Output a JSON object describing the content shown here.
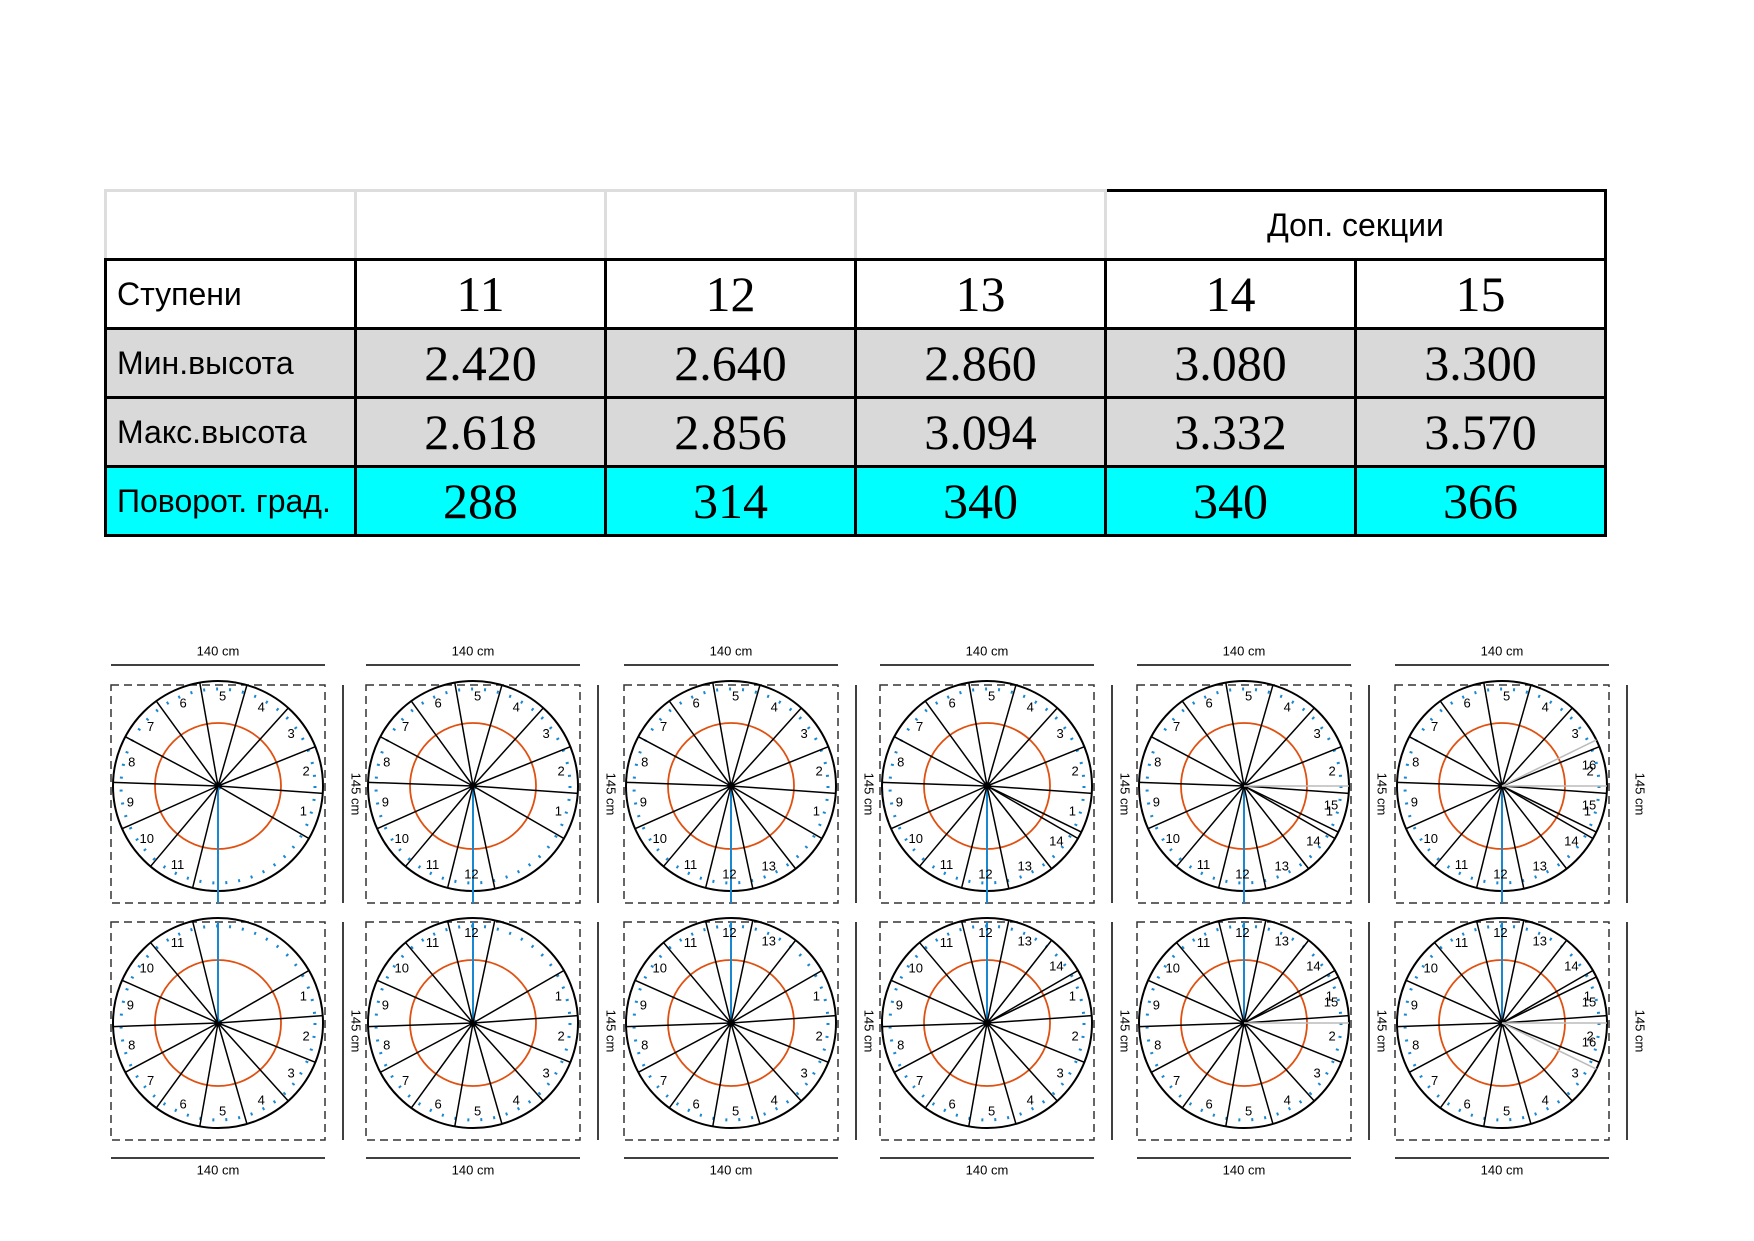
{
  "table": {
    "header": [
      "",
      "",
      "",
      "",
      "Доп. секции"
    ],
    "rows": [
      [
        "Ступени",
        "11",
        "12",
        "13",
        "14",
        "15"
      ],
      [
        "Мин.высота",
        "2.420",
        "2.640",
        "2.860",
        "3.080",
        "3.300"
      ],
      [
        "Макс.высота",
        "2.618",
        "2.856",
        "3.094",
        "3.332",
        "3.570"
      ],
      [
        "Поворот. град.",
        "288",
        "314",
        "340",
        "340",
        "366"
      ]
    ]
  },
  "diagrams": [
    {
      "width_top": "140 cm",
      "height_top": "145 cm",
      "height_bottom": "145 cm",
      "width_bottom": "140 cm",
      "steps": [
        1,
        2,
        3,
        4,
        5,
        6,
        7,
        8,
        9,
        10,
        11
      ]
    },
    {
      "width_top": "140 cm",
      "height_top": "145 cm",
      "height_bottom": "145 cm",
      "width_bottom": "140 cm",
      "steps": [
        1,
        2,
        3,
        4,
        5,
        6,
        7,
        8,
        9,
        10,
        11,
        12
      ]
    },
    {
      "width_top": "140 cm",
      "height_top": "145 cm",
      "height_bottom": "145 cm",
      "width_bottom": "140 cm",
      "steps": [
        1,
        2,
        3,
        4,
        5,
        6,
        7,
        8,
        9,
        10,
        11,
        12,
        13
      ]
    },
    {
      "width_top": "140 cm",
      "height_top": "145 cm",
      "height_bottom": "145 cm",
      "width_bottom": "140 cm",
      "steps": [
        1,
        2,
        3,
        4,
        5,
        6,
        7,
        8,
        9,
        10,
        11,
        12,
        13,
        14
      ]
    },
    {
      "width_top": "140 cm",
      "height_top": "145 cm",
      "height_bottom": "145 cm",
      "width_bottom": "140 cm",
      "steps": [
        1,
        2,
        3,
        4,
        5,
        6,
        7,
        8,
        9,
        10,
        11,
        12,
        13,
        14,
        15
      ]
    },
    {
      "width_top": "140 cm",
      "height_top": "145 cm",
      "height_bottom": "145 cm",
      "width_bottom": "140 cm",
      "steps": [
        1,
        2,
        3,
        4,
        5,
        6,
        7,
        8,
        9,
        10,
        11,
        12,
        13,
        14,
        15,
        16
      ]
    }
  ]
}
